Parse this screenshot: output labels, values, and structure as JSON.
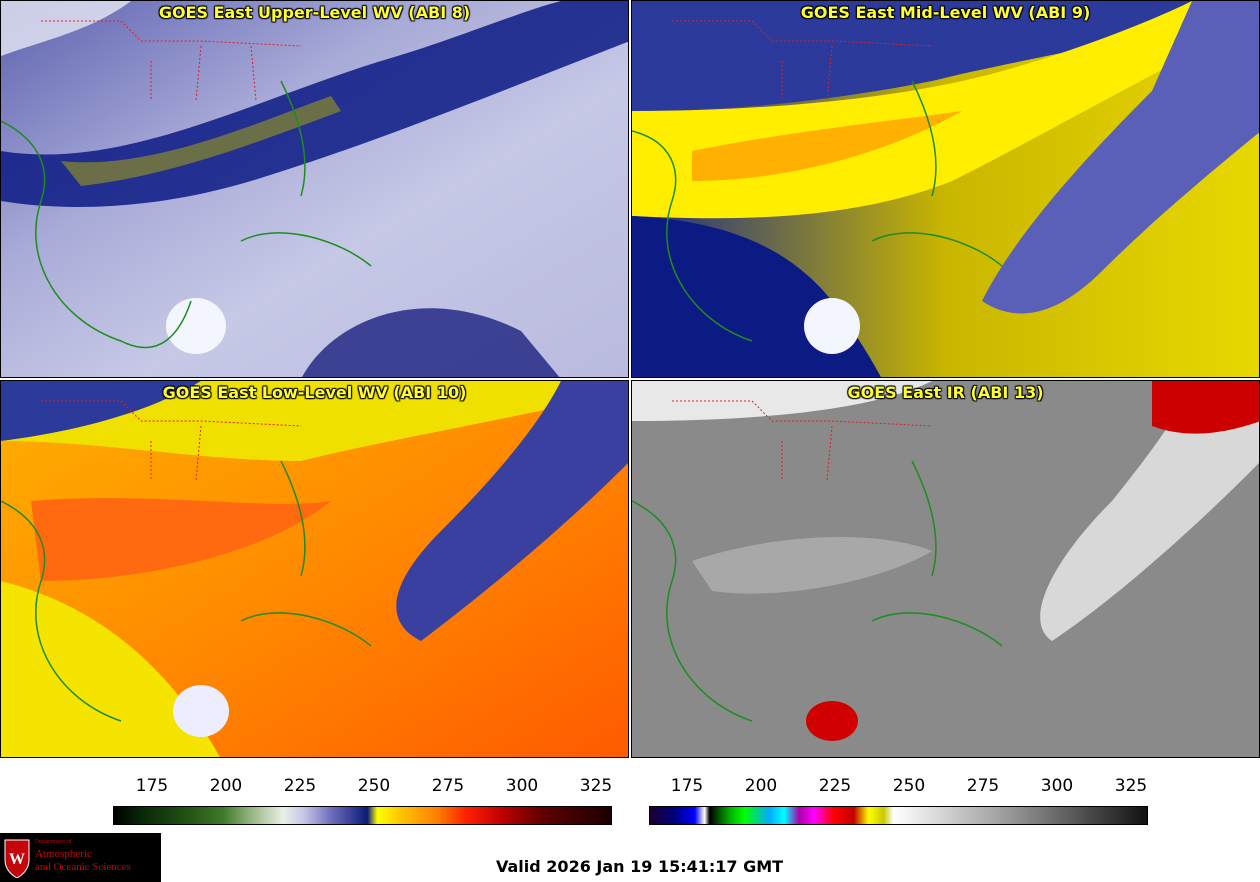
{
  "panels": [
    {
      "title": "GOES East Upper-Level WV (ABI 8)"
    },
    {
      "title": "GOES East Mid-Level WV (ABI 9)"
    },
    {
      "title": "GOES East Low-Level WV (ABI 10)"
    },
    {
      "title": "GOES East IR (ABI 13)"
    }
  ],
  "colorbars": [
    {
      "ticks": [
        "175",
        "200",
        "225",
        "250",
        "275",
        "300",
        "325"
      ]
    },
    {
      "ticks": [
        "175",
        "200",
        "225",
        "250",
        "275",
        "300",
        "325"
      ]
    }
  ],
  "logo": {
    "line1": "Department of",
    "line2": "Atmospheric",
    "line3": "and Oceanic Sciences"
  },
  "valid_text": "Valid 2026 Jan 19 15:41:17 GMT",
  "colors": {
    "title": "#ffff33",
    "coast": "#1e8c1e",
    "state_border": "#e02020"
  }
}
